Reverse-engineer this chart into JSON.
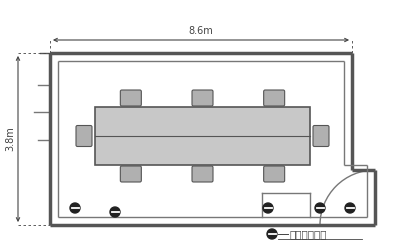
{
  "bg_color": "#ffffff",
  "wall_color": "#555555",
  "wall_color_thin": "#777777",
  "table_fill": "#c8c8c8",
  "chair_fill": "#b0b0b0",
  "chair_edge": "#555555",
  "dim_color": "#444444",
  "outlet_color": "#222222",
  "width_label": "8.6m",
  "height_label": "3.8m",
  "legend_label": "壁コンセント"
}
